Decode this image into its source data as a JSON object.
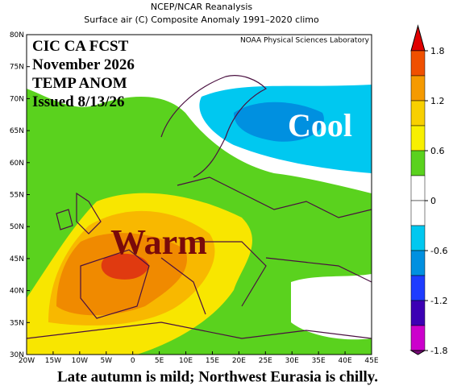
{
  "header": {
    "title": "NCEP/NCAR Reanalysis",
    "subtitle": "Surface air (C) Composite Anomaly 1991–2020 climo"
  },
  "map": {
    "credit": "NOAA Physical Sciences Laboratory",
    "overlay": [
      "CIC CA FCST",
      "November 2026",
      "TEMP ANOM",
      "Issued 8/13/26"
    ],
    "cool_label": "Cool",
    "warm_label": "Warm",
    "lat_labels": [
      "80N",
      "75N",
      "70N",
      "65N",
      "60N",
      "55N",
      "50N",
      "45N",
      "40N",
      "35N",
      "30N"
    ],
    "lon_labels": [
      "20W",
      "15W",
      "10W",
      "5W",
      "0",
      "5E",
      "10E",
      "15E",
      "20E",
      "25E",
      "30E",
      "35E",
      "40E",
      "45E"
    ]
  },
  "colorbar": {
    "labels": [
      "1.8",
      "1.2",
      "0.6",
      "0",
      "-0.6",
      "-1.2",
      "-1.8"
    ]
  },
  "caption": "Late autumn is mild; Northwest Eurasia is chilly."
}
